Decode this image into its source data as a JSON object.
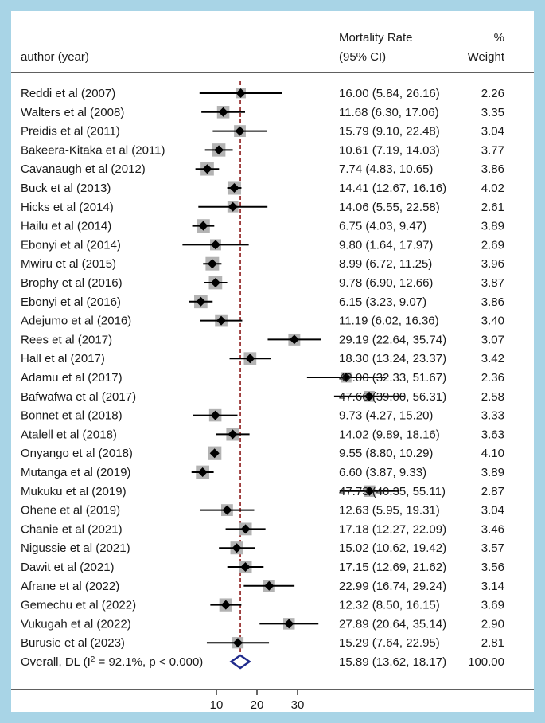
{
  "chart_data": {
    "type": "forest",
    "header": {
      "study_col": "author (year)",
      "estimate_col_line1": "Mortality Rate",
      "estimate_col_line2": "(95% CI)",
      "weight_col_line1": "%",
      "weight_col_line2": "Weight"
    },
    "reference_line": 15.89,
    "x_ticks": [
      10,
      20,
      30
    ],
    "studies": [
      {
        "label": "Reddi et al (2007)",
        "est": 16.0,
        "lo": 5.84,
        "hi": 26.16,
        "ci_text": "16.00 (5.84, 26.16)",
        "weight": 2.26,
        "weight_text": "2.26"
      },
      {
        "label": "Walters et al (2008)",
        "est": 11.68,
        "lo": 6.3,
        "hi": 17.06,
        "ci_text": "11.68 (6.30, 17.06)",
        "weight": 3.35,
        "weight_text": "3.35"
      },
      {
        "label": "Preidis et al (2011)",
        "est": 15.79,
        "lo": 9.1,
        "hi": 22.48,
        "ci_text": "15.79 (9.10, 22.48)",
        "weight": 3.04,
        "weight_text": "3.04"
      },
      {
        "label": "Bakeera-Kitaka et al (2011)",
        "est": 10.61,
        "lo": 7.19,
        "hi": 14.03,
        "ci_text": "10.61 (7.19, 14.03)",
        "weight": 3.77,
        "weight_text": "3.77"
      },
      {
        "label": "Cavanaugh et al (2012)",
        "est": 7.74,
        "lo": 4.83,
        "hi": 10.65,
        "ci_text": "7.74 (4.83, 10.65)",
        "weight": 3.86,
        "weight_text": "3.86"
      },
      {
        "label": "Buck et al (2013)",
        "est": 14.41,
        "lo": 12.67,
        "hi": 16.16,
        "ci_text": "14.41 (12.67, 16.16)",
        "weight": 4.02,
        "weight_text": "4.02"
      },
      {
        "label": "Hicks et al (2014)",
        "est": 14.06,
        "lo": 5.55,
        "hi": 22.58,
        "ci_text": "14.06 (5.55, 22.58)",
        "weight": 2.61,
        "weight_text": "2.61"
      },
      {
        "label": "Hailu et al (2014)",
        "est": 6.75,
        "lo": 4.03,
        "hi": 9.47,
        "ci_text": "6.75 (4.03, 9.47)",
        "weight": 3.89,
        "weight_text": "3.89"
      },
      {
        "label": "Ebonyi et al (2014)",
        "est": 9.8,
        "lo": 1.64,
        "hi": 17.97,
        "ci_text": "9.80 (1.64, 17.97)",
        "weight": 2.69,
        "weight_text": "2.69"
      },
      {
        "label": "Mwiru et al (2015)",
        "est": 8.99,
        "lo": 6.72,
        "hi": 11.25,
        "ci_text": "8.99 (6.72, 11.25)",
        "weight": 3.96,
        "weight_text": "3.96"
      },
      {
        "label": "Brophy et al (2016)",
        "est": 9.78,
        "lo": 6.9,
        "hi": 12.66,
        "ci_text": "9.78 (6.90, 12.66)",
        "weight": 3.87,
        "weight_text": "3.87"
      },
      {
        "label": "Ebonyi et al (2016)",
        "est": 6.15,
        "lo": 3.23,
        "hi": 9.07,
        "ci_text": "6.15 (3.23, 9.07)",
        "weight": 3.86,
        "weight_text": "3.86"
      },
      {
        "label": "Adejumo et al (2016)",
        "est": 11.19,
        "lo": 6.02,
        "hi": 16.36,
        "ci_text": "11.19 (6.02, 16.36)",
        "weight": 3.4,
        "weight_text": "3.40"
      },
      {
        "label": "Rees et al (2017)",
        "est": 29.19,
        "lo": 22.64,
        "hi": 35.74,
        "ci_text": "29.19 (22.64, 35.74)",
        "weight": 3.07,
        "weight_text": "3.07"
      },
      {
        "label": "Hall et al (2017)",
        "est": 18.3,
        "lo": 13.24,
        "hi": 23.37,
        "ci_text": "18.30 (13.24, 23.37)",
        "weight": 3.42,
        "weight_text": "3.42"
      },
      {
        "label": "Adamu et al (2017)",
        "est": 42.0,
        "lo": 32.33,
        "hi": 51.67,
        "ci_text": "42.00 (32.33, 51.67)",
        "weight": 2.36,
        "weight_text": "2.36"
      },
      {
        "label": "Bafwafwa et al (2017)",
        "est": 47.66,
        "lo": 39.0,
        "hi": 56.31,
        "ci_text": "47.66 (39.00, 56.31)",
        "weight": 2.58,
        "weight_text": "2.58"
      },
      {
        "label": "Bonnet et al (2018)",
        "est": 9.73,
        "lo": 4.27,
        "hi": 15.2,
        "ci_text": "9.73 (4.27, 15.20)",
        "weight": 3.33,
        "weight_text": "3.33"
      },
      {
        "label": "Atalell et al (2018)",
        "est": 14.02,
        "lo": 9.89,
        "hi": 18.16,
        "ci_text": "14.02 (9.89, 18.16)",
        "weight": 3.63,
        "weight_text": "3.63"
      },
      {
        "label": "Onyango et al (2018)",
        "est": 9.55,
        "lo": 8.8,
        "hi": 10.29,
        "ci_text": "9.55 (8.80, 10.29)",
        "weight": 4.1,
        "weight_text": "4.10"
      },
      {
        "label": "Mutanga et al (2019)",
        "est": 6.6,
        "lo": 3.87,
        "hi": 9.33,
        "ci_text": "6.60 (3.87, 9.33)",
        "weight": 3.89,
        "weight_text": "3.89"
      },
      {
        "label": "Mukuku et al (2019)",
        "est": 47.73,
        "lo": 40.35,
        "hi": 55.11,
        "ci_text": "47.73 (40.35, 55.11)",
        "weight": 2.87,
        "weight_text": "2.87"
      },
      {
        "label": "Ohene et al (2019)",
        "est": 12.63,
        "lo": 5.95,
        "hi": 19.31,
        "ci_text": "12.63 (5.95, 19.31)",
        "weight": 3.04,
        "weight_text": "3.04"
      },
      {
        "label": "Chanie et al (2021)",
        "est": 17.18,
        "lo": 12.27,
        "hi": 22.09,
        "ci_text": "17.18 (12.27, 22.09)",
        "weight": 3.46,
        "weight_text": "3.46"
      },
      {
        "label": "Nigussie et al (2021)",
        "est": 15.02,
        "lo": 10.62,
        "hi": 19.42,
        "ci_text": "15.02 (10.62, 19.42)",
        "weight": 3.57,
        "weight_text": "3.57"
      },
      {
        "label": "Dawit et al (2021)",
        "est": 17.15,
        "lo": 12.69,
        "hi": 21.62,
        "ci_text": "17.15 (12.69, 21.62)",
        "weight": 3.56,
        "weight_text": "3.56"
      },
      {
        "label": "Afrane et al (2022)",
        "est": 22.99,
        "lo": 16.74,
        "hi": 29.24,
        "ci_text": "22.99 (16.74, 29.24)",
        "weight": 3.14,
        "weight_text": "3.14"
      },
      {
        "label": "Gemechu et al (2022)",
        "est": 12.32,
        "lo": 8.5,
        "hi": 16.15,
        "ci_text": "12.32 (8.50, 16.15)",
        "weight": 3.69,
        "weight_text": "3.69"
      },
      {
        "label": "Vukugah et al (2022)",
        "est": 27.89,
        "lo": 20.64,
        "hi": 35.14,
        "ci_text": "27.89 (20.64, 35.14)",
        "weight": 2.9,
        "weight_text": "2.90"
      },
      {
        "label": "Burusie et al (2023)",
        "est": 15.29,
        "lo": 7.64,
        "hi": 22.95,
        "ci_text": "15.29 (7.64, 22.95)",
        "weight": 2.81,
        "weight_text": "2.81"
      }
    ],
    "overall": {
      "label_prefix": "Overall, DL (I",
      "label_sup": "2",
      "label_suffix": " = 92.1%, p < 0.000)",
      "est": 15.89,
      "lo": 13.62,
      "hi": 18.17,
      "ci_text": "15.89 (13.62, 18.17)",
      "weight_text": "100.00"
    },
    "colors": {
      "page_background": "#a8d4e6",
      "panel_background": "#ffffff",
      "weight_box": "#b3b3b3",
      "point_marker": "#000000",
      "reference_line": "#8b1a1a",
      "overall_diamond": "#1f2a8c"
    }
  }
}
